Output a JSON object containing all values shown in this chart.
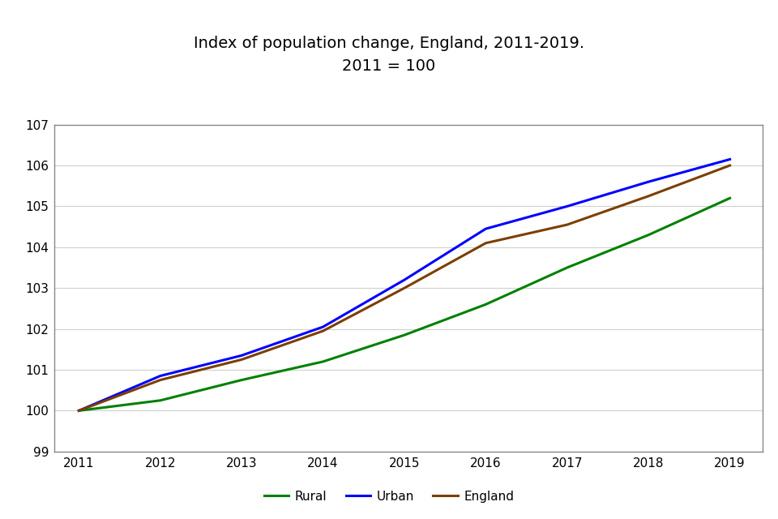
{
  "title_line1": "Index of population change, England, 2011-2019.",
  "title_line2": "2011 = 100",
  "years": [
    2011,
    2012,
    2013,
    2014,
    2015,
    2016,
    2017,
    2018,
    2019
  ],
  "rural": [
    100.0,
    100.25,
    100.75,
    101.2,
    101.85,
    102.6,
    103.5,
    104.3,
    105.2
  ],
  "urban": [
    100.0,
    100.85,
    101.35,
    102.05,
    103.2,
    104.45,
    105.0,
    105.6,
    106.15
  ],
  "england": [
    100.0,
    100.75,
    101.25,
    101.95,
    103.0,
    104.1,
    104.55,
    105.25,
    106.0
  ],
  "rural_color": "#008000",
  "urban_color": "#0000ff",
  "england_color": "#7b3f00",
  "ylim": [
    99,
    107
  ],
  "yticks": [
    99,
    100,
    101,
    102,
    103,
    104,
    105,
    106,
    107
  ],
  "xlim": [
    2010.7,
    2019.4
  ],
  "xticks": [
    2011,
    2012,
    2013,
    2014,
    2015,
    2016,
    2017,
    2018,
    2019
  ],
  "legend_labels": [
    "Rural",
    "Urban",
    "England"
  ],
  "line_width": 2.2,
  "background_color": "#ffffff",
  "plot_bg_color": "#ffffff",
  "border_color": "#888888",
  "grid_color": "#d0d0d0",
  "title_fontsize": 14,
  "tick_fontsize": 11
}
